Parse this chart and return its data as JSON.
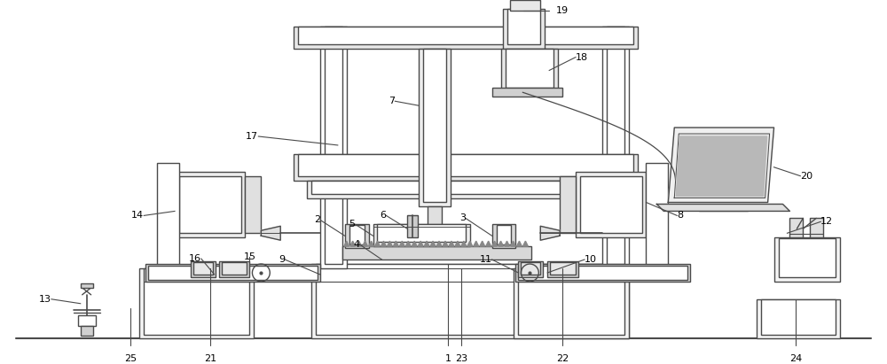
{
  "bg_color": "#ffffff",
  "line_color": "#4a4a4a",
  "lw": 1.0,
  "fig_w": 10.0,
  "fig_h": 4.11
}
